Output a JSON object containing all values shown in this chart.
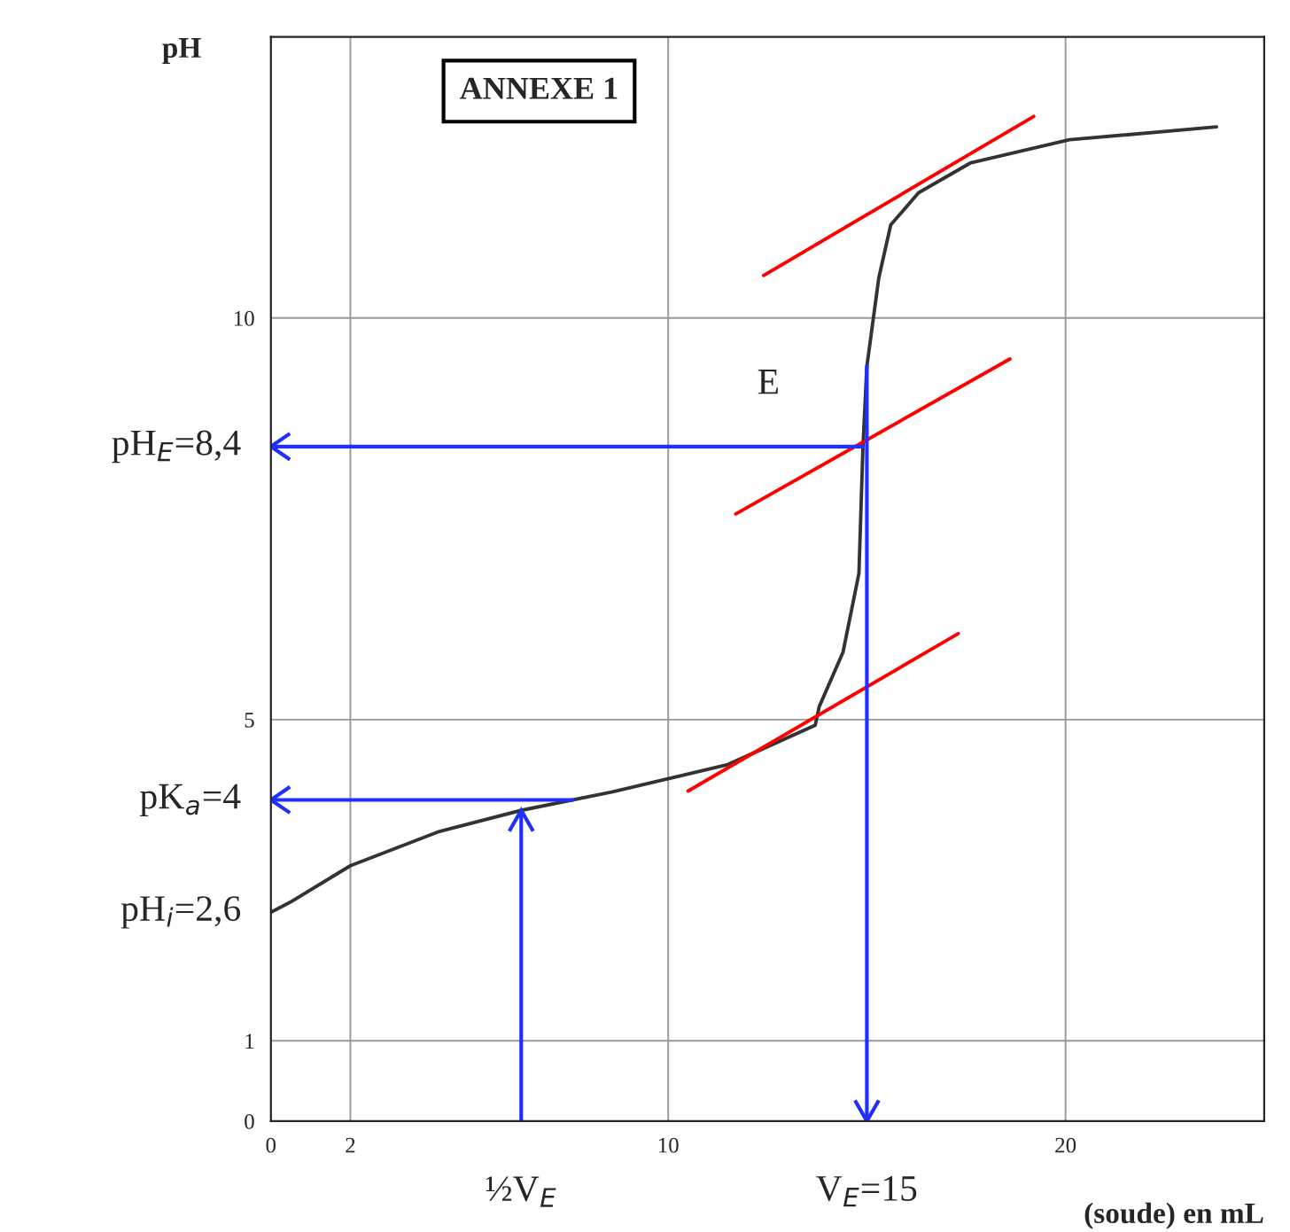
{
  "chart_data": {
    "type": "line",
    "title": "ANNEXE 1",
    "xlabel": "(soude) en mL",
    "ylabel": "pH",
    "xlim": [
      0,
      25
    ],
    "ylim": [
      0,
      13.5
    ],
    "xticks": [
      0,
      2,
      10,
      20
    ],
    "yticks": [
      0,
      1,
      5,
      10
    ],
    "grid": true,
    "series": [
      {
        "color": "#333333",
        "x": [
          0,
          0.5,
          2.0,
          4.2,
          6.3,
          8.6,
          11.5,
          13.7,
          13.8,
          14.4,
          14.8,
          14.9,
          15.0,
          15.3,
          15.6,
          16.3,
          17.6,
          20.1,
          23.8
        ],
        "values": [
          2.6,
          2.73,
          3.18,
          3.6,
          3.87,
          4.1,
          4.44,
          4.93,
          5.16,
          5.84,
          6.82,
          8.38,
          9.4,
          10.5,
          11.16,
          11.56,
          11.93,
          12.22,
          12.38
        ]
      },
      {
        "color": "#ff0000",
        "x": [
          12.4,
          19.2
        ],
        "values": [
          10.53,
          12.51
        ]
      },
      {
        "color": "#ff0000",
        "x": [
          11.7,
          18.6
        ],
        "values": [
          7.56,
          9.49
        ]
      },
      {
        "color": "#ff0000",
        "x": [
          10.5,
          17.3
        ],
        "values": [
          4.11,
          6.07
        ]
      }
    ],
    "ref_lines": [
      {
        "axis": "y",
        "value": 8.4,
        "label": "pH$_{E}$=8,4",
        "color": "#1f2fff"
      },
      {
        "axis": "y",
        "value": 4,
        "label": "pK$_{a}$=4",
        "color": "#1f2fff"
      },
      {
        "axis": "x",
        "value": 6.3,
        "label": "½V$_{E}$",
        "color": "#1f2fff"
      },
      {
        "axis": "x",
        "value": 15,
        "label": "V$_{E}$=15",
        "color": "#1f2fff"
      }
    ],
    "annotations": [
      {
        "text": "pH$_{i}$=2,6",
        "x": 0,
        "y": 2.6
      },
      {
        "text": "E",
        "x": 15,
        "y": 8.4
      }
    ]
  }
}
